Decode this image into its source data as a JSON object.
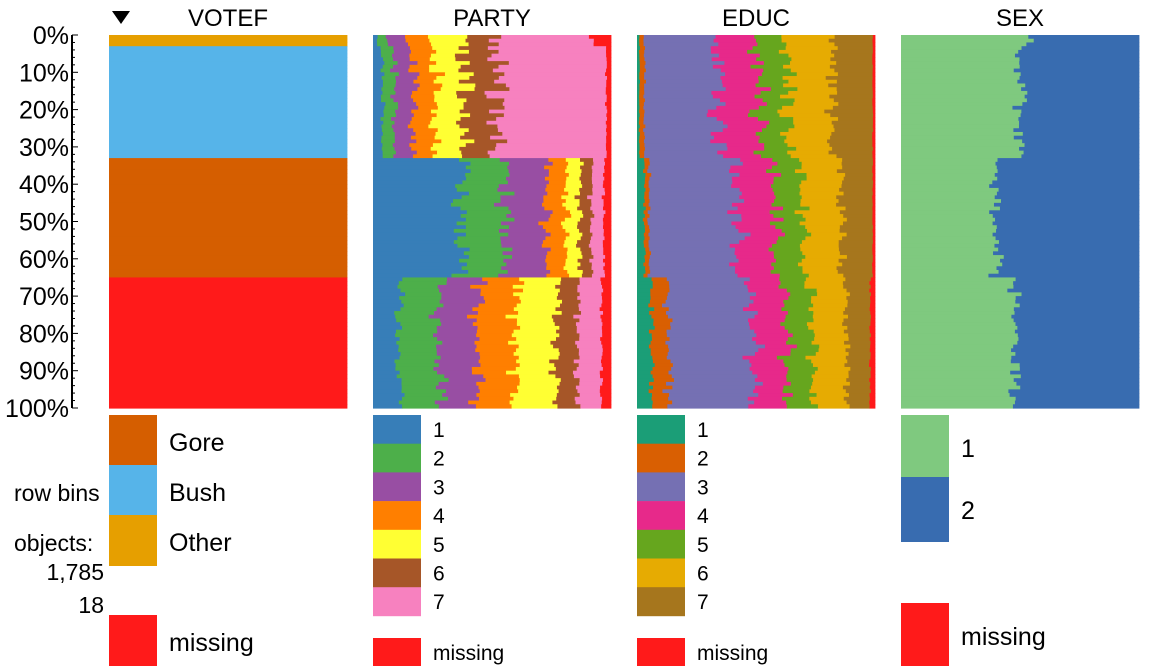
{
  "chart_data": {
    "type": "table",
    "y_axis": {
      "ticks": [
        "0%",
        "10%",
        "20%",
        "30%",
        "40%",
        "50%",
        "60%",
        "70%",
        "80%",
        "90%",
        "100%"
      ],
      "range": [
        0,
        100
      ]
    },
    "sort_column": "VOTEF",
    "sort_direction": "descending",
    "sort_icon": "triangle-down-icon",
    "columns": [
      {
        "name": "VOTEF",
        "categories": [
          {
            "label": "Gore",
            "color": "#D55E00"
          },
          {
            "label": "Bush",
            "color": "#56B4E9"
          },
          {
            "label": "Other",
            "color": "#E69F00"
          },
          {
            "label": "missing",
            "color": "#FF1A1A"
          }
        ],
        "row_proportions": [
          {
            "from": 0,
            "to": 3,
            "values": [
              0,
              0,
              1,
              0
            ]
          },
          {
            "from": 3,
            "to": 33,
            "values": [
              0,
              1,
              0,
              0
            ]
          },
          {
            "from": 33,
            "to": 65,
            "values": [
              1,
              0,
              0,
              0
            ]
          },
          {
            "from": 65,
            "to": 100,
            "values": [
              0,
              0,
              0,
              1
            ]
          }
        ]
      },
      {
        "name": "PARTY",
        "categories": [
          {
            "label": "1",
            "color": "#377EB8"
          },
          {
            "label": "2",
            "color": "#4DAF4A"
          },
          {
            "label": "3",
            "color": "#984EA3"
          },
          {
            "label": "4",
            "color": "#FF7F00"
          },
          {
            "label": "5",
            "color": "#FFFF33"
          },
          {
            "label": "6",
            "color": "#A65628"
          },
          {
            "label": "7",
            "color": "#F781BF"
          },
          {
            "label": "missing",
            "color": "#FF1A1A"
          }
        ],
        "row_proportions": [
          {
            "from": 0,
            "to": 3,
            "values": [
              0.02,
              0.04,
              0.08,
              0.1,
              0.14,
              0.12,
              0.42,
              0.08
            ]
          },
          {
            "from": 3,
            "to": 33,
            "values": [
              0.04,
              0.05,
              0.08,
              0.09,
              0.12,
              0.14,
              0.46,
              0.02
            ]
          },
          {
            "from": 33,
            "to": 65,
            "values": [
              0.38,
              0.18,
              0.17,
              0.08,
              0.06,
              0.05,
              0.05,
              0.03
            ]
          },
          {
            "from": 65,
            "to": 100,
            "values": [
              0.11,
              0.17,
              0.16,
              0.16,
              0.17,
              0.09,
              0.1,
              0.04
            ]
          }
        ]
      },
      {
        "name": "EDUC",
        "categories": [
          {
            "label": "1",
            "color": "#1B9E77"
          },
          {
            "label": "2",
            "color": "#D95F02"
          },
          {
            "label": "3",
            "color": "#7570B3"
          },
          {
            "label": "4",
            "color": "#E7298A"
          },
          {
            "label": "5",
            "color": "#66A61E"
          },
          {
            "label": "6",
            "color": "#E6AB02"
          },
          {
            "label": "7",
            "color": "#A6761D"
          },
          {
            "label": "missing",
            "color": "#FF1A1A"
          }
        ],
        "row_proportions": [
          {
            "from": 0,
            "to": 3,
            "values": [
              0.01,
              0.02,
              0.28,
              0.18,
              0.12,
              0.2,
              0.18,
              0.01
            ]
          },
          {
            "from": 3,
            "to": 33,
            "values": [
              0.01,
              0.02,
              0.31,
              0.17,
              0.12,
              0.19,
              0.17,
              0.01
            ]
          },
          {
            "from": 33,
            "to": 65,
            "values": [
              0.03,
              0.02,
              0.36,
              0.16,
              0.12,
              0.17,
              0.13,
              0.01
            ]
          },
          {
            "from": 65,
            "to": 100,
            "values": [
              0.06,
              0.07,
              0.36,
              0.14,
              0.11,
              0.14,
              0.1,
              0.02
            ]
          }
        ]
      },
      {
        "name": "SEX",
        "categories": [
          {
            "label": "1",
            "color": "#7FC97F"
          },
          {
            "label": "2",
            "color": "#386CB0"
          },
          {
            "label": "missing",
            "color": "#FF1A1A"
          }
        ],
        "row_proportions": [
          {
            "from": 0,
            "to": 3,
            "values": [
              0.54,
              0.46,
              0
            ]
          },
          {
            "from": 3,
            "to": 33,
            "values": [
              0.5,
              0.5,
              0
            ]
          },
          {
            "from": 33,
            "to": 65,
            "values": [
              0.4,
              0.6,
              0
            ]
          },
          {
            "from": 65,
            "to": 100,
            "values": [
              0.48,
              0.52,
              0
            ]
          }
        ]
      }
    ]
  },
  "info": {
    "row_bins_label": "row bins",
    "objects_label": "objects:",
    "objects_value": "1,785",
    "row_bins_value": "18"
  }
}
